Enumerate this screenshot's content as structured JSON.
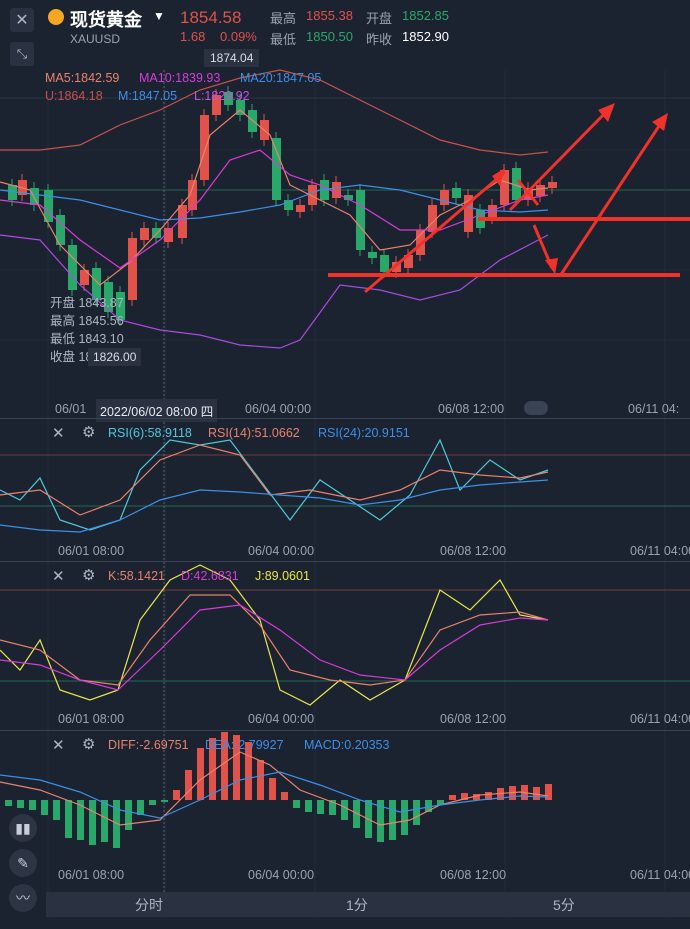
{
  "header": {
    "title": "现货黄金",
    "symbol": "XAUUSD",
    "price": "1854.58",
    "change": "1.68",
    "change_pct": "0.09%",
    "high_label": "最高",
    "high": "1855.38",
    "open_label": "开盘",
    "open": "1852.85",
    "low_label": "最低",
    "low": "1850.50",
    "prev_close_label": "昨收",
    "prev_close": "1852.90"
  },
  "main_chart": {
    "max_label": "1874.04",
    "min_label": "1826.00",
    "ma5": "MA5:1842.59",
    "ma10": "MA10:1839.93",
    "ma20": "MA20:1847.05",
    "boll_u": "U:1864.18",
    "boll_m": "M:1847.05",
    "boll_l": "L:1829.92",
    "tooltip": {
      "open": "开盘 1843.87",
      "high": "最高 1845.56",
      "low": "最低 1843.10",
      "close": "收盘 1844.47"
    },
    "x_labels": [
      "06/01",
      "06/04 00:00",
      "06/08 12:00",
      "06/11 04:"
    ],
    "crosshair_time": "2022/06/02 08:00 四"
  },
  "rsi": {
    "rsi6": "RSI(6):58.9118",
    "rsi14": "RSI(14):51.0662",
    "rsi24": "RSI(24):20.9151",
    "x_labels": [
      "06/01 08:00",
      "06/04 00:00",
      "06/08 12:00",
      "06/11 04:00"
    ]
  },
  "kdj": {
    "k": "K:58.1421",
    "d": "D:42.6831",
    "j": "J:89.0601",
    "x_labels": [
      "06/01 08:00",
      "06/04 00:00",
      "06/08 12:00",
      "06/11 04:00"
    ]
  },
  "macd": {
    "diff": "DIFF:-2.69751",
    "dea": "DEA:-2.79927",
    "macd": "MACD:0.20353",
    "x_labels": [
      "06/01 08:00",
      "06/04 00:00",
      "06/08 12:00",
      "06/11 04:00"
    ]
  },
  "tabs": [
    "分时",
    "1分",
    "5分"
  ],
  "colors": {
    "up": "#e0524a",
    "down": "#2aa86a",
    "bg": "#1b2230",
    "accent": "#f5a623",
    "ma5": "#e8836c",
    "ma10": "#d63cd6",
    "ma20": "#3d8fe8",
    "boll": "#c8524b",
    "annotation": "#f0322a"
  },
  "icons": [
    "close-icon",
    "shrink-icon",
    "settings-icon",
    "candle-type-icon",
    "draw-pen-icon",
    "indicator-icon"
  ]
}
